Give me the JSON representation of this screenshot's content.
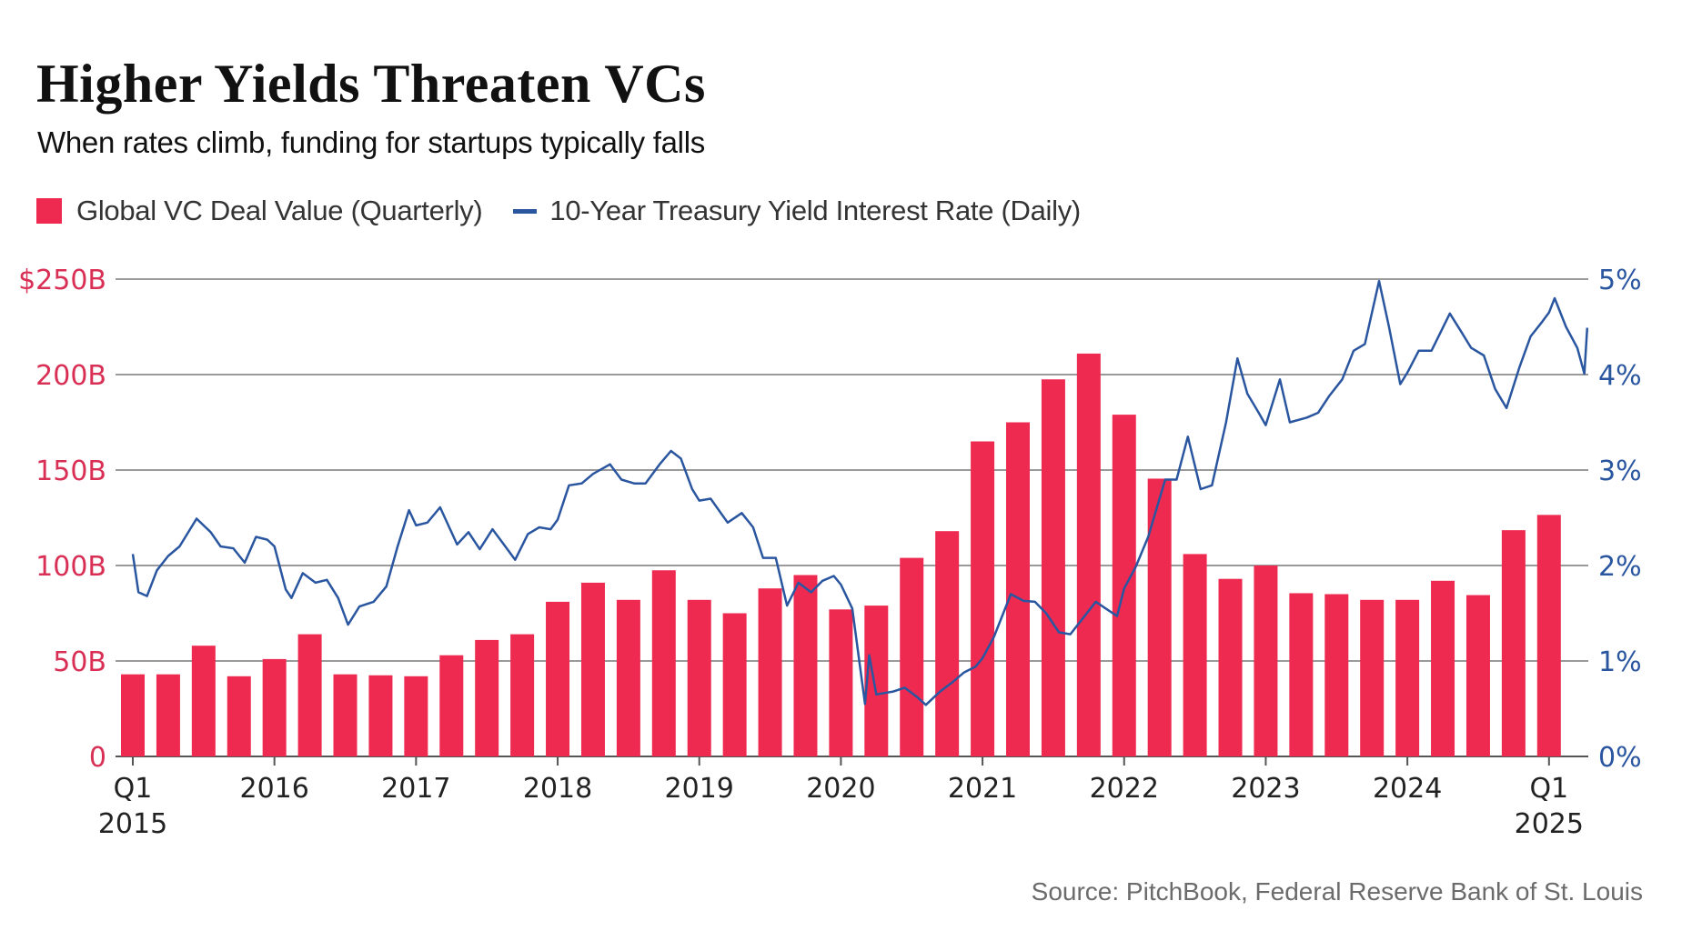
{
  "title": "Higher Yields Threaten VCs",
  "subtitle": "When rates climb, funding for startups typically falls",
  "source": "Source: PitchBook, Federal Reserve Bank of St. Louis",
  "colors": {
    "bars": "#ef2a51",
    "line": "#2a56a0",
    "left_axis_text": "#d92f55",
    "right_axis_text": "#2a56a0",
    "gridline": "#9a9a9a",
    "axis_text": "#222222"
  },
  "legend": [
    {
      "label": "Global VC Deal Value (Quarterly)",
      "marker": "square"
    },
    {
      "label": "10-Year Treasury Yield Interest Rate (Daily)",
      "marker": "line"
    }
  ],
  "chart_data": {
    "type": "bar+line",
    "title": "Higher Yields Threaten VCs",
    "subtitle": "When rates climb, funding for startups typically falls",
    "grid": true,
    "legend_position": "top-left",
    "y_left": {
      "label": "Global VC Deal Value (Quarterly)",
      "range": [
        0,
        250
      ],
      "unit": "B USD",
      "ticks": [
        0,
        50,
        100,
        150,
        200,
        250
      ],
      "tick_labels": [
        "0",
        "50B",
        "100B",
        "150B",
        "200B",
        "$250B"
      ]
    },
    "y_right": {
      "label": "10-Year Treasury Yield",
      "range": [
        0,
        5
      ],
      "unit": "%",
      "ticks": [
        0,
        1,
        2,
        3,
        4,
        5
      ],
      "tick_labels": [
        "0%",
        "1%",
        "2%",
        "3%",
        "4%",
        "5%"
      ]
    },
    "x_ticks": [
      {
        "quarter_index": 0,
        "line1": "Q1",
        "line2": "2015"
      },
      {
        "quarter_index": 4,
        "line1": "2016",
        "line2": ""
      },
      {
        "quarter_index": 8,
        "line1": "2017",
        "line2": ""
      },
      {
        "quarter_index": 12,
        "line1": "2018",
        "line2": ""
      },
      {
        "quarter_index": 16,
        "line1": "2019",
        "line2": ""
      },
      {
        "quarter_index": 20,
        "line1": "2020",
        "line2": ""
      },
      {
        "quarter_index": 24,
        "line1": "2021",
        "line2": ""
      },
      {
        "quarter_index": 28,
        "line1": "2022",
        "line2": ""
      },
      {
        "quarter_index": 32,
        "line1": "2023",
        "line2": ""
      },
      {
        "quarter_index": 36,
        "line1": "2024",
        "line2": ""
      },
      {
        "quarter_index": 40,
        "line1": "Q1",
        "line2": "2025"
      }
    ],
    "bar_series": {
      "name": "Global VC Deal Value (Quarterly)",
      "categories": [
        "Q1 2015",
        "Q2 2015",
        "Q3 2015",
        "Q4 2015",
        "Q1 2016",
        "Q2 2016",
        "Q3 2016",
        "Q4 2016",
        "Q1 2017",
        "Q2 2017",
        "Q3 2017",
        "Q4 2017",
        "Q1 2018",
        "Q2 2018",
        "Q3 2018",
        "Q4 2018",
        "Q1 2019",
        "Q2 2019",
        "Q3 2019",
        "Q4 2019",
        "Q1 2020",
        "Q2 2020",
        "Q3 2020",
        "Q4 2020",
        "Q1 2021",
        "Q2 2021",
        "Q3 2021",
        "Q4 2021",
        "Q1 2022",
        "Q2 2022",
        "Q3 2022",
        "Q4 2022",
        "Q1 2023",
        "Q2 2023",
        "Q3 2023",
        "Q4 2023",
        "Q1 2024",
        "Q2 2024",
        "Q3 2024",
        "Q4 2024",
        "Q1 2025"
      ],
      "values": [
        43,
        43,
        58,
        42,
        51,
        64,
        43,
        42.5,
        42,
        53,
        61,
        64,
        81,
        91,
        82,
        97.5,
        82,
        75,
        88,
        95,
        77,
        79,
        104,
        118,
        165,
        175,
        197.5,
        211,
        179,
        145.5,
        106,
        93,
        100,
        85.5,
        85,
        82,
        82,
        92,
        84.5,
        118.5,
        126.5
      ]
    },
    "line_series": {
      "name": "10-Year Treasury Yield Interest Rate (Daily)",
      "x_unit": "year (fractional)",
      "points": [
        [
          2015.0,
          2.12
        ],
        [
          2015.04,
          1.72
        ],
        [
          2015.1,
          1.68
        ],
        [
          2015.17,
          1.95
        ],
        [
          2015.25,
          2.1
        ],
        [
          2015.33,
          2.2
        ],
        [
          2015.45,
          2.49
        ],
        [
          2015.55,
          2.35
        ],
        [
          2015.62,
          2.2
        ],
        [
          2015.71,
          2.18
        ],
        [
          2015.79,
          2.03
        ],
        [
          2015.87,
          2.3
        ],
        [
          2015.95,
          2.27
        ],
        [
          2016.0,
          2.2
        ],
        [
          2016.08,
          1.75
        ],
        [
          2016.12,
          1.66
        ],
        [
          2016.2,
          1.92
        ],
        [
          2016.29,
          1.82
        ],
        [
          2016.37,
          1.85
        ],
        [
          2016.45,
          1.66
        ],
        [
          2016.52,
          1.38
        ],
        [
          2016.6,
          1.57
        ],
        [
          2016.7,
          1.62
        ],
        [
          2016.79,
          1.78
        ],
        [
          2016.87,
          2.2
        ],
        [
          2016.95,
          2.58
        ],
        [
          2017.0,
          2.42
        ],
        [
          2017.08,
          2.45
        ],
        [
          2017.17,
          2.61
        ],
        [
          2017.29,
          2.22
        ],
        [
          2017.37,
          2.35
        ],
        [
          2017.45,
          2.17
        ],
        [
          2017.54,
          2.38
        ],
        [
          2017.62,
          2.22
        ],
        [
          2017.7,
          2.06
        ],
        [
          2017.79,
          2.33
        ],
        [
          2017.87,
          2.4
        ],
        [
          2017.95,
          2.38
        ],
        [
          2018.0,
          2.48
        ],
        [
          2018.08,
          2.84
        ],
        [
          2018.17,
          2.86
        ],
        [
          2018.25,
          2.96
        ],
        [
          2018.37,
          3.06
        ],
        [
          2018.45,
          2.9
        ],
        [
          2018.54,
          2.86
        ],
        [
          2018.62,
          2.86
        ],
        [
          2018.72,
          3.06
        ],
        [
          2018.8,
          3.2
        ],
        [
          2018.87,
          3.12
        ],
        [
          2018.95,
          2.8
        ],
        [
          2019.0,
          2.68
        ],
        [
          2019.08,
          2.7
        ],
        [
          2019.2,
          2.45
        ],
        [
          2019.3,
          2.55
        ],
        [
          2019.38,
          2.4
        ],
        [
          2019.45,
          2.08
        ],
        [
          2019.54,
          2.08
        ],
        [
          2019.62,
          1.58
        ],
        [
          2019.7,
          1.82
        ],
        [
          2019.79,
          1.72
        ],
        [
          2019.87,
          1.84
        ],
        [
          2019.95,
          1.89
        ],
        [
          2020.0,
          1.8
        ],
        [
          2020.08,
          1.55
        ],
        [
          2020.17,
          0.55
        ],
        [
          2020.2,
          1.06
        ],
        [
          2020.25,
          0.65
        ],
        [
          2020.37,
          0.68
        ],
        [
          2020.45,
          0.72
        ],
        [
          2020.54,
          0.62
        ],
        [
          2020.6,
          0.54
        ],
        [
          2020.7,
          0.68
        ],
        [
          2020.79,
          0.78
        ],
        [
          2020.87,
          0.88
        ],
        [
          2020.95,
          0.94
        ],
        [
          2021.0,
          1.03
        ],
        [
          2021.08,
          1.25
        ],
        [
          2021.2,
          1.7
        ],
        [
          2021.29,
          1.63
        ],
        [
          2021.37,
          1.62
        ],
        [
          2021.45,
          1.5
        ],
        [
          2021.54,
          1.3
        ],
        [
          2021.62,
          1.28
        ],
        [
          2021.71,
          1.45
        ],
        [
          2021.8,
          1.62
        ],
        [
          2021.87,
          1.55
        ],
        [
          2021.95,
          1.47
        ],
        [
          2022.0,
          1.76
        ],
        [
          2022.08,
          1.98
        ],
        [
          2022.17,
          2.3
        ],
        [
          2022.29,
          2.9
        ],
        [
          2022.37,
          2.9
        ],
        [
          2022.45,
          3.35
        ],
        [
          2022.54,
          2.8
        ],
        [
          2022.62,
          2.84
        ],
        [
          2022.72,
          3.5
        ],
        [
          2022.8,
          4.17
        ],
        [
          2022.87,
          3.8
        ],
        [
          2022.95,
          3.6
        ],
        [
          2023.0,
          3.47
        ],
        [
          2023.1,
          3.95
        ],
        [
          2023.17,
          3.5
        ],
        [
          2023.29,
          3.55
        ],
        [
          2023.37,
          3.6
        ],
        [
          2023.45,
          3.78
        ],
        [
          2023.54,
          3.95
        ],
        [
          2023.62,
          4.25
        ],
        [
          2023.7,
          4.32
        ],
        [
          2023.8,
          4.98
        ],
        [
          2023.87,
          4.5
        ],
        [
          2023.95,
          3.9
        ],
        [
          2024.0,
          4.02
        ],
        [
          2024.08,
          4.25
        ],
        [
          2024.17,
          4.25
        ],
        [
          2024.3,
          4.64
        ],
        [
          2024.38,
          4.45
        ],
        [
          2024.45,
          4.28
        ],
        [
          2024.54,
          4.2
        ],
        [
          2024.62,
          3.85
        ],
        [
          2024.7,
          3.65
        ],
        [
          2024.79,
          4.07
        ],
        [
          2024.87,
          4.4
        ],
        [
          2024.95,
          4.55
        ],
        [
          2025.0,
          4.65
        ],
        [
          2025.04,
          4.8
        ],
        [
          2025.12,
          4.5
        ],
        [
          2025.2,
          4.28
        ],
        [
          2025.25,
          4.01
        ],
        [
          2025.27,
          4.49
        ]
      ]
    }
  }
}
